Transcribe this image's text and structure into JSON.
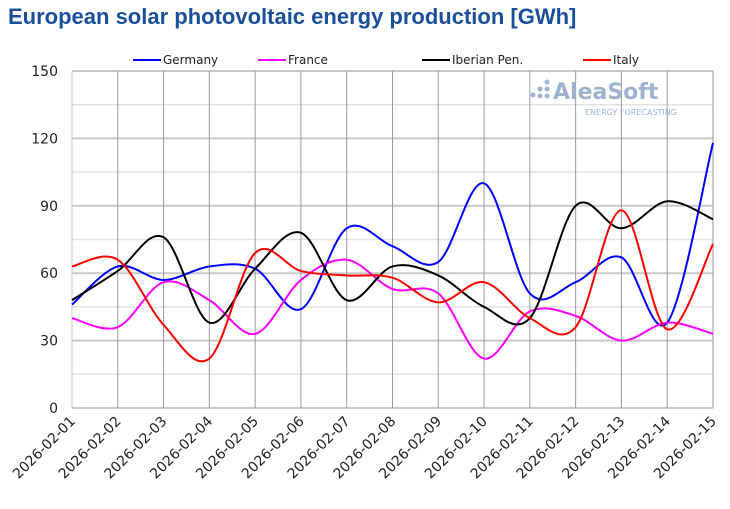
{
  "chart_data": {
    "type": "line",
    "title": "European solar photovoltaic energy production [GWh]",
    "logo": {
      "name": "AleaSoft",
      "tagline": "ENERGY FORECASTING"
    },
    "x": [
      "2026-02-01",
      "2026-02-02",
      "2026-02-03",
      "2026-02-04",
      "2026-02-05",
      "2026-02-06",
      "2026-02-07",
      "2026-02-08",
      "2026-02-09",
      "2026-02-10",
      "2026-02-11",
      "2026-02-12",
      "2026-02-13",
      "2026-02-14",
      "2026-02-15"
    ],
    "ylim": [
      0,
      150
    ],
    "yticks": [
      0,
      30,
      60,
      90,
      120,
      150
    ],
    "grid": true,
    "legend": "top",
    "smoothed": true,
    "series": [
      {
        "name": "Germany",
        "color": "#0000ff",
        "values": [
          46,
          63,
          57,
          63,
          62,
          44,
          80,
          72,
          65,
          100,
          51,
          56,
          67,
          38,
          118
        ]
      },
      {
        "name": "France",
        "color": "#ff00ff",
        "values": [
          40,
          36,
          56,
          48,
          33,
          57,
          66,
          53,
          51,
          22,
          43,
          41,
          30,
          38,
          33
        ]
      },
      {
        "name": "Iberian Pen.",
        "color": "#000000",
        "values": [
          48,
          61,
          76,
          38,
          62,
          78,
          48,
          63,
          59,
          45,
          40,
          90,
          80,
          92,
          84
        ]
      },
      {
        "name": "Italy",
        "color": "#ff0000",
        "values": [
          63,
          66,
          37,
          22,
          69,
          61,
          59,
          58,
          47,
          56,
          40,
          36,
          88,
          35,
          73
        ]
      }
    ]
  }
}
